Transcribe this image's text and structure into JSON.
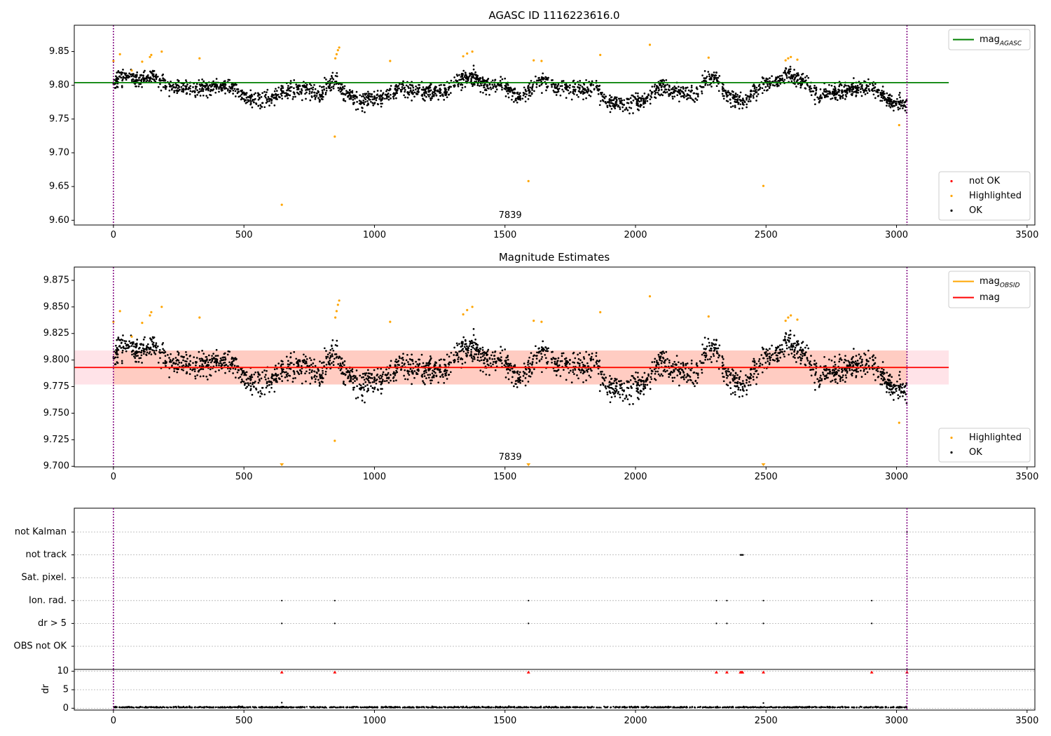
{
  "colors": {
    "ok": "#000000",
    "highlighted": "#ffa500",
    "not_ok": "#ff0000",
    "mag_agasc_line": "#008000",
    "mag_obsid_line": "#ffa500",
    "mag_line": "#ff0000",
    "obsid_band": "#ffa07a",
    "mag_band": "#ffc0cb",
    "vline": "#800080",
    "axis": "#000000",
    "grid": "#b0b0b0"
  },
  "chart_data": [
    {
      "type": "scatter",
      "title": "AGASC ID 1116223616.0",
      "xlim": [
        -150,
        3530
      ],
      "ylim": [
        9.593,
        9.889
      ],
      "xticks": [
        0,
        500,
        1000,
        1500,
        2000,
        2500,
        3000,
        3500
      ],
      "yticks": [
        9.6,
        9.65,
        9.7,
        9.75,
        9.8,
        9.85
      ],
      "ytick_decimals": 2,
      "vlines": [
        0,
        3040
      ],
      "obsid_label": "7839",
      "obsid_label_x": 1520,
      "grid": false,
      "hlines": [
        {
          "name": "mag_AGASC",
          "y": 9.804,
          "x0": -150,
          "x1": 3200,
          "color_key": "mag_agasc_line"
        }
      ],
      "bands": [],
      "series": [
        {
          "name": "not OK",
          "color_key": "not_ok",
          "points": []
        },
        {
          "name": "Highlighted",
          "color_key": "highlighted",
          "points": [
            [
              0,
              9.836
            ],
            [
              25,
              9.846
            ],
            [
              70,
              9.822
            ],
            [
              110,
              9.835
            ],
            [
              140,
              9.842
            ],
            [
              145,
              9.845
            ],
            [
              185,
              9.85
            ],
            [
              330,
              9.84
            ],
            [
              645,
              9.623
            ],
            [
              848,
              9.724
            ],
            [
              850,
              9.84
            ],
            [
              855,
              9.846
            ],
            [
              860,
              9.852
            ],
            [
              865,
              9.856
            ],
            [
              1060,
              9.836
            ],
            [
              1340,
              9.843
            ],
            [
              1355,
              9.847
            ],
            [
              1375,
              9.85
            ],
            [
              1590,
              9.658
            ],
            [
              1610,
              9.837
            ],
            [
              1640,
              9.836
            ],
            [
              1865,
              9.845
            ],
            [
              2055,
              9.86
            ],
            [
              2280,
              9.841
            ],
            [
              2490,
              9.651
            ],
            [
              2575,
              9.837
            ],
            [
              2585,
              9.84
            ],
            [
              2595,
              9.842
            ],
            [
              2620,
              9.838
            ],
            [
              3010,
              9.741
            ]
          ]
        },
        {
          "name": "OK",
          "color_key": "ok",
          "points": "generated"
        }
      ],
      "legend": {
        "placement": "lower-right",
        "entries": [
          "not OK",
          "Highlighted",
          "OK"
        ]
      },
      "line_legend": {
        "placement": "upper-right",
        "entries": [
          {
            "label": "mag",
            "sub": "AGASC",
            "color_key": "mag_agasc_line"
          }
        ]
      },
      "ok_profile": [
        [
          0,
          9.803
        ],
        [
          30,
          9.815
        ],
        [
          80,
          9.808
        ],
        [
          150,
          9.815
        ],
        [
          200,
          9.8
        ],
        [
          300,
          9.795
        ],
        [
          400,
          9.8
        ],
        [
          450,
          9.798
        ],
        [
          520,
          9.78
        ],
        [
          600,
          9.778
        ],
        [
          640,
          9.79
        ],
        [
          700,
          9.795
        ],
        [
          800,
          9.79
        ],
        [
          850,
          9.812
        ],
        [
          880,
          9.79
        ],
        [
          950,
          9.775
        ],
        [
          1050,
          9.785
        ],
        [
          1100,
          9.795
        ],
        [
          1200,
          9.79
        ],
        [
          1280,
          9.792
        ],
        [
          1320,
          9.808
        ],
        [
          1380,
          9.812
        ],
        [
          1430,
          9.8
        ],
        [
          1500,
          9.798
        ],
        [
          1560,
          9.78
        ],
        [
          1620,
          9.805
        ],
        [
          1650,
          9.808
        ],
        [
          1700,
          9.795
        ],
        [
          1800,
          9.792
        ],
        [
          1850,
          9.8
        ],
        [
          1880,
          9.778
        ],
        [
          1960,
          9.77
        ],
        [
          2050,
          9.78
        ],
        [
          2100,
          9.8
        ],
        [
          2150,
          9.79
        ],
        [
          2230,
          9.785
        ],
        [
          2270,
          9.808
        ],
        [
          2310,
          9.812
        ],
        [
          2350,
          9.785
        ],
        [
          2420,
          9.775
        ],
        [
          2480,
          9.8
        ],
        [
          2530,
          9.805
        ],
        [
          2580,
          9.818
        ],
        [
          2650,
          9.805
        ],
        [
          2700,
          9.785
        ],
        [
          2800,
          9.793
        ],
        [
          2900,
          9.798
        ],
        [
          2980,
          9.776
        ],
        [
          3040,
          9.773
        ]
      ]
    },
    {
      "type": "scatter",
      "title": "Magnitude Estimates",
      "xlim": [
        -150,
        3530
      ],
      "ylim": [
        9.6995,
        9.8875
      ],
      "xticks": [
        0,
        500,
        1000,
        1500,
        2000,
        2500,
        3000,
        3500
      ],
      "yticks": [
        9.7,
        9.725,
        9.75,
        9.775,
        9.8,
        9.825,
        9.85,
        9.875
      ],
      "ytick_decimals": 3,
      "vlines": [
        0,
        3040
      ],
      "obsid_label": "7839",
      "obsid_label_x": 1520,
      "grid": false,
      "hlines": [
        {
          "name": "mag_OBSID",
          "y": 9.793,
          "x0": 0,
          "x1": 3040,
          "color_key": "mag_obsid_line"
        },
        {
          "name": "mag",
          "y": 9.793,
          "x0": -150,
          "x1": 3200,
          "color_key": "mag_line"
        }
      ],
      "bands": [
        {
          "y0": 9.777,
          "y1": 9.809,
          "x0": -150,
          "x1": 3200,
          "color_key": "mag_band",
          "opacity": 0.45
        },
        {
          "y0": 9.777,
          "y1": 9.809,
          "x0": 0,
          "x1": 3040,
          "color_key": "obsid_band",
          "opacity": 0.35
        }
      ],
      "clipped_markers_x": [
        645,
        1590,
        2490
      ],
      "series": [
        {
          "name": "Highlighted",
          "color_key": "highlighted",
          "points": [
            [
              0,
              9.836
            ],
            [
              25,
              9.846
            ],
            [
              70,
              9.822
            ],
            [
              110,
              9.835
            ],
            [
              140,
              9.842
            ],
            [
              145,
              9.845
            ],
            [
              185,
              9.85
            ],
            [
              330,
              9.84
            ],
            [
              848,
              9.724
            ],
            [
              850,
              9.84
            ],
            [
              855,
              9.846
            ],
            [
              860,
              9.852
            ],
            [
              865,
              9.856
            ],
            [
              1060,
              9.836
            ],
            [
              1340,
              9.843
            ],
            [
              1355,
              9.847
            ],
            [
              1375,
              9.85
            ],
            [
              1610,
              9.837
            ],
            [
              1640,
              9.836
            ],
            [
              1865,
              9.845
            ],
            [
              2055,
              9.86
            ],
            [
              2280,
              9.841
            ],
            [
              2575,
              9.837
            ],
            [
              2585,
              9.84
            ],
            [
              2595,
              9.842
            ],
            [
              2620,
              9.838
            ],
            [
              3010,
              9.741
            ]
          ]
        },
        {
          "name": "OK",
          "color_key": "ok",
          "points": "generated"
        }
      ],
      "legend": {
        "placement": "lower-right",
        "entries": [
          "Highlighted",
          "OK"
        ]
      },
      "line_legend": {
        "placement": "upper-right",
        "entries": [
          {
            "label": "mag",
            "sub": "OBSID",
            "color_key": "mag_obsid_line"
          },
          {
            "label": "mag",
            "sub": "",
            "color_key": "mag_line"
          }
        ]
      }
    },
    {
      "type": "scatter",
      "title": "",
      "xlim": [
        -150,
        3530
      ],
      "categories": [
        "not Kalman",
        "not track",
        "Sat. pixel.",
        "Ion. rad.",
        "dr > 5",
        "OBS not OK"
      ],
      "grid": true,
      "vlines": [
        0,
        3040
      ],
      "flags": {
        "not Kalman": [
          3040
        ],
        "not track": [
          2402,
          2404,
          2406,
          2408,
          2410,
          2412
        ],
        "Sat. pixel.": [],
        "Ion. rad.": [
          645,
          848,
          1590,
          2310,
          2350,
          2490,
          2905
        ],
        "dr > 5": [
          645,
          848,
          1590,
          2310,
          2350,
          2490,
          2905
        ],
        "OBS not OK": []
      }
    },
    {
      "type": "scatter",
      "title": "",
      "ylabel": "dr",
      "xlim": [
        -150,
        3530
      ],
      "ylim": [
        -0.5,
        10.5
      ],
      "xticks": [
        0,
        500,
        1000,
        1500,
        2000,
        2500,
        3000,
        3500
      ],
      "yticks": [
        0,
        5,
        10
      ],
      "grid": true,
      "vlines": [
        0,
        3040
      ],
      "clipped_dr_x": [
        645,
        848,
        1590,
        2310,
        2350,
        2402,
        2406,
        2410,
        2490,
        2905,
        3040
      ],
      "series": [
        {
          "name": "dr",
          "color_key": "ok",
          "points": "generated"
        }
      ]
    }
  ]
}
